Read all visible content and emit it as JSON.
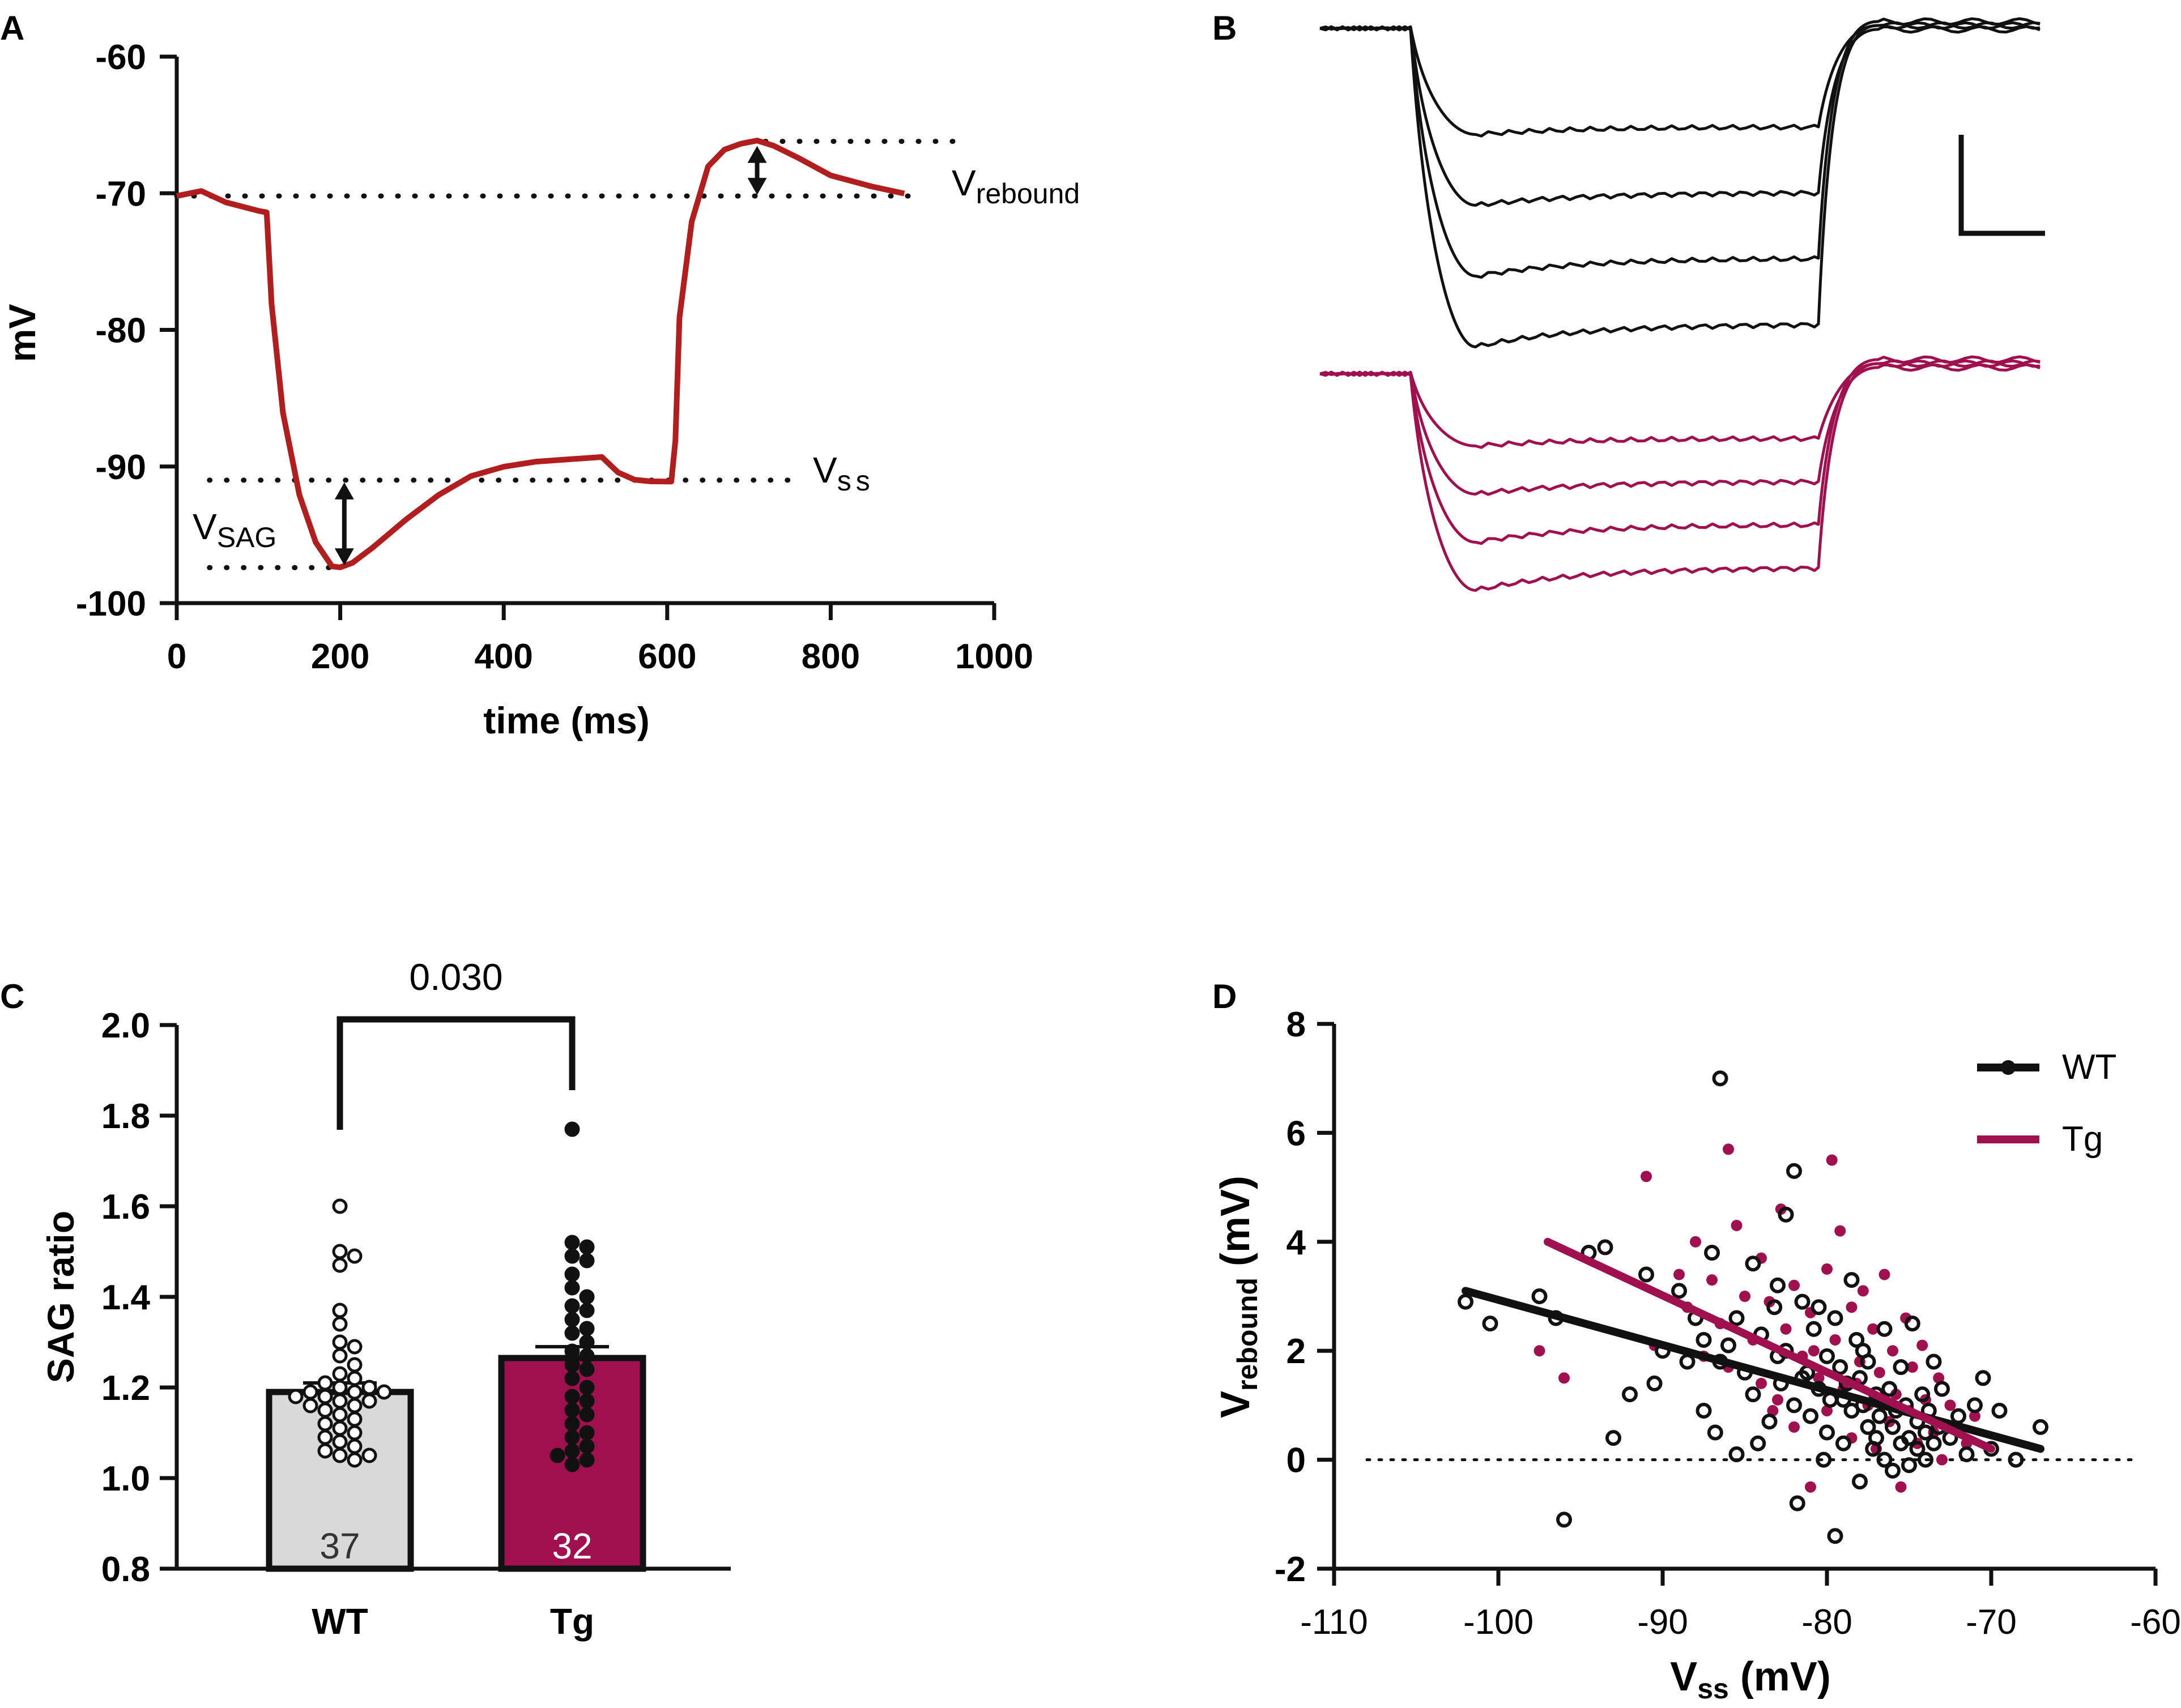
{
  "colors": {
    "wt": "#111111",
    "tg": "#a0104f",
    "trace_a": "#b21e1e",
    "wt_bar": "#d9d9d9"
  },
  "chart_data": [
    {
      "panel": "A",
      "type": "line",
      "xlabel": "time (ms)",
      "ylabel": "mV",
      "xlim": [
        0,
        1000
      ],
      "ylim": [
        -100,
        -60
      ],
      "xticks": [
        "0",
        "200",
        "400",
        "600",
        "800",
        "1000"
      ],
      "yticks": [
        "-60",
        "-70",
        "-80",
        "-90",
        "-100"
      ],
      "trace": {
        "x": [
          0,
          30,
          60,
          100,
          110,
          116,
          130,
          150,
          170,
          190,
          200,
          215,
          240,
          280,
          320,
          360,
          400,
          440,
          480,
          520,
          540,
          560,
          580,
          605,
          610,
          615,
          630,
          650,
          670,
          690,
          710,
          730,
          760,
          800,
          850,
          890
        ],
        "y": [
          -70.2,
          -69.8,
          -70.6,
          -71.2,
          -71.3,
          -78,
          -86,
          -92,
          -95.5,
          -97.3,
          -97.4,
          -97.1,
          -96,
          -94,
          -92.2,
          -90.8,
          -90.1,
          -89.7,
          -89.5,
          -89.3,
          -90.4,
          -90.9,
          -91,
          -91,
          -88,
          -79,
          -72,
          -68,
          -66.8,
          -66.4,
          -66.2,
          -66.6,
          -67.5,
          -68.8,
          -69.6,
          -70.1
        ]
      },
      "annotations": {
        "rebound": "rebound",
        "ss": "ss",
        "sag": "SAG",
        "v": "V"
      },
      "ref_lines": {
        "baseline": -70.2,
        "ss": -91,
        "sag_min": -97.4,
        "rebound_peak": -66.2
      }
    },
    {
      "panel": "B",
      "type": "line",
      "series": [
        {
          "name": "WT",
          "steady_state": [
            0.3,
            0.5,
            0.7,
            0.9
          ]
        },
        {
          "name": "Tg",
          "steady_state": [
            0.3,
            0.5,
            0.7,
            0.9
          ]
        }
      ]
    },
    {
      "panel": "C",
      "type": "bar",
      "categories": [
        "WT",
        "Tg"
      ],
      "values": [
        1.19,
        1.265
      ],
      "errors": [
        0.02,
        0.025
      ],
      "n_labels": [
        "37",
        "32"
      ],
      "ylabel": "SAG ratio",
      "ylim": [
        0.8,
        2.0
      ],
      "yticks": [
        "2.0",
        "1.8",
        "1.6",
        "1.4",
        "1.2",
        "1.0",
        "0.8"
      ],
      "p_value": "0.030",
      "points": {
        "WT": [
          1.6,
          1.5,
          1.49,
          1.47,
          1.37,
          1.34,
          1.3,
          1.29,
          1.27,
          1.25,
          1.23,
          1.22,
          1.21,
          1.2,
          1.2,
          1.19,
          1.19,
          1.19,
          1.18,
          1.18,
          1.17,
          1.17,
          1.16,
          1.16,
          1.15,
          1.14,
          1.13,
          1.12,
          1.11,
          1.1,
          1.09,
          1.08,
          1.07,
          1.06,
          1.05,
          1.05,
          1.04
        ],
        "Tg": [
          1.77,
          1.52,
          1.51,
          1.49,
          1.48,
          1.45,
          1.42,
          1.4,
          1.38,
          1.37,
          1.35,
          1.33,
          1.32,
          1.3,
          1.28,
          1.27,
          1.25,
          1.24,
          1.22,
          1.2,
          1.18,
          1.17,
          1.15,
          1.14,
          1.12,
          1.1,
          1.09,
          1.07,
          1.06,
          1.05,
          1.04,
          1.03
        ]
      }
    },
    {
      "panel": "D",
      "type": "scatter",
      "xlabel_main": "V",
      "xlabel_sub": "ss",
      "xlabel_unit": " (mV)",
      "ylabel_main": "V",
      "ylabel_sub": "rebound",
      "ylabel_unit": " (mV)",
      "xlim": [
        -110,
        -60
      ],
      "ylim": [
        -2,
        8
      ],
      "xticks": [
        "-110",
        "-100",
        "-90",
        "-80",
        "-70",
        "-60"
      ],
      "yticks": [
        "8",
        "6",
        "4",
        "2",
        "0",
        "-2"
      ],
      "legend": [
        "WT",
        "Tg"
      ],
      "fits": {
        "WT": {
          "x": [
            -102,
            -67
          ],
          "y": [
            3.1,
            0.2
          ]
        },
        "Tg": {
          "x": [
            -97,
            -70
          ],
          "y": [
            4.0,
            0.2
          ]
        }
      },
      "wt_points": [
        [
          -102,
          2.9
        ],
        [
          -100.5,
          2.5
        ],
        [
          -97.5,
          3.0
        ],
        [
          -96.5,
          2.6
        ],
        [
          -96,
          -1.1
        ],
        [
          -94.5,
          3.8
        ],
        [
          -93.5,
          3.9
        ],
        [
          -93,
          0.4
        ],
        [
          -92,
          1.2
        ],
        [
          -91,
          3.4
        ],
        [
          -90.5,
          1.4
        ],
        [
          -90,
          2.0
        ],
        [
          -89,
          3.1
        ],
        [
          -88.5,
          1.8
        ],
        [
          -88,
          2.6
        ],
        [
          -87.5,
          2.2
        ],
        [
          -87.5,
          0.9
        ],
        [
          -87,
          3.8
        ],
        [
          -86.8,
          0.5
        ],
        [
          -86.5,
          1.8
        ],
        [
          -86,
          2.1
        ],
        [
          -85.5,
          2.6
        ],
        [
          -85.5,
          0.1
        ],
        [
          -85,
          1.6
        ],
        [
          -84.5,
          3.6
        ],
        [
          -84.5,
          1.2
        ],
        [
          -84,
          2.3
        ],
        [
          -83.5,
          0.7
        ],
        [
          -83.2,
          2.8
        ],
        [
          -83,
          1.9
        ],
        [
          -82.5,
          4.5
        ],
        [
          -82.5,
          2.0
        ],
        [
          -82,
          5.3
        ],
        [
          -82,
          1.0
        ],
        [
          -81.8,
          -0.8
        ],
        [
          -81.5,
          2.9
        ],
        [
          -81.5,
          1.5
        ],
        [
          -81,
          0.8
        ],
        [
          -80.8,
          2.4
        ],
        [
          -80.5,
          1.3
        ],
        [
          -80.2,
          0.0
        ],
        [
          -80,
          1.9
        ],
        [
          -80,
          0.5
        ],
        [
          -79.8,
          1.1
        ],
        [
          -79.5,
          2.6
        ],
        [
          -79.2,
          1.7
        ],
        [
          -79,
          0.3
        ],
        [
          -78.8,
          1.4
        ],
        [
          -78.5,
          3.3
        ],
        [
          -78.5,
          0.9
        ],
        [
          -78.2,
          2.2
        ],
        [
          -78,
          1.5
        ],
        [
          -78,
          -0.4
        ],
        [
          -77.8,
          1.0
        ],
        [
          -77.5,
          0.6
        ],
        [
          -77.5,
          1.8
        ],
        [
          -77.2,
          0.2
        ],
        [
          -77,
          1.2
        ],
        [
          -77,
          0.4
        ],
        [
          -76.8,
          0.8
        ],
        [
          -76.5,
          2.4
        ],
        [
          -76.5,
          0.0
        ],
        [
          -76.2,
          1.3
        ],
        [
          -76,
          0.6
        ],
        [
          -76,
          -0.2
        ],
        [
          -75.8,
          0.9
        ],
        [
          -75.5,
          1.7
        ],
        [
          -75.5,
          0.3
        ],
        [
          -75.2,
          1.0
        ],
        [
          -75,
          0.4
        ],
        [
          -75,
          -0.1
        ],
        [
          -74.8,
          2.5
        ],
        [
          -74.5,
          0.7
        ],
        [
          -74.5,
          0.2
        ],
        [
          -74.2,
          1.2
        ],
        [
          -74,
          0.5
        ],
        [
          -74,
          0.0
        ],
        [
          -73.8,
          0.9
        ],
        [
          -73.5,
          1.8
        ],
        [
          -73.5,
          0.3
        ],
        [
          -73.2,
          0.6
        ],
        [
          -73,
          1.3
        ],
        [
          -72.5,
          0.4
        ],
        [
          -72,
          0.8
        ],
        [
          -71.5,
          0.1
        ],
        [
          -71,
          1.0
        ],
        [
          -70.5,
          1.5
        ],
        [
          -70,
          0.2
        ],
        [
          -69.5,
          0.9
        ],
        [
          -68.5,
          0.0
        ],
        [
          -67,
          0.6
        ],
        [
          -79.5,
          -1.4
        ],
        [
          -80.5,
          2.8
        ],
        [
          -83,
          3.2
        ],
        [
          -86.5,
          7.0
        ],
        [
          -81.2,
          1.6
        ],
        [
          -82.8,
          1.4
        ],
        [
          -84.2,
          0.3
        ],
        [
          -79,
          1.1
        ],
        [
          -77.8,
          2.0
        ]
      ],
      "tg_points": [
        [
          -97.5,
          2.0
        ],
        [
          -96,
          1.5
        ],
        [
          -91,
          5.2
        ],
        [
          -90.5,
          2.1
        ],
        [
          -89,
          3.4
        ],
        [
          -88.5,
          2.8
        ],
        [
          -88,
          4.0
        ],
        [
          -87.5,
          1.9
        ],
        [
          -87,
          3.3
        ],
        [
          -86.5,
          2.5
        ],
        [
          -86,
          5.7
        ],
        [
          -86,
          1.7
        ],
        [
          -85.5,
          4.3
        ],
        [
          -85,
          3.0
        ],
        [
          -84.5,
          2.2
        ],
        [
          -84,
          3.7
        ],
        [
          -84,
          1.4
        ],
        [
          -83.5,
          2.9
        ],
        [
          -83,
          1.1
        ],
        [
          -82.8,
          4.6
        ],
        [
          -82.5,
          2.4
        ],
        [
          -82,
          3.2
        ],
        [
          -82,
          0.6
        ],
        [
          -81.5,
          1.9
        ],
        [
          -81,
          2.7
        ],
        [
          -81,
          -0.5
        ],
        [
          -80.5,
          1.5
        ],
        [
          -80,
          3.5
        ],
        [
          -80,
          0.9
        ],
        [
          -79.7,
          5.5
        ],
        [
          -79.5,
          2.2
        ],
        [
          -79.2,
          4.2
        ],
        [
          -79,
          1.3
        ],
        [
          -78.5,
          2.8
        ],
        [
          -78.5,
          0.4
        ],
        [
          -78,
          1.8
        ],
        [
          -77.8,
          3.1
        ],
        [
          -77.5,
          1.0
        ],
        [
          -77.2,
          2.4
        ],
        [
          -77,
          0.2
        ],
        [
          -76.8,
          1.6
        ],
        [
          -76.5,
          3.4
        ],
        [
          -76.2,
          0.7
        ],
        [
          -76,
          2.0
        ],
        [
          -75.8,
          1.2
        ],
        [
          -75.5,
          -0.5
        ],
        [
          -75.2,
          2.6
        ],
        [
          -75,
          0.9
        ],
        [
          -74.8,
          1.7
        ],
        [
          -74.5,
          0.3
        ],
        [
          -74.2,
          2.1
        ],
        [
          -74,
          1.1
        ],
        [
          -73.5,
          0.5
        ],
        [
          -73.2,
          1.5
        ],
        [
          -73,
          0.0
        ],
        [
          -72.5,
          1.0
        ],
        [
          -72,
          0.6
        ],
        [
          -71.5,
          0.3
        ],
        [
          -71,
          0.8
        ],
        [
          -83.3,
          0.9
        ],
        [
          -80.8,
          2.0
        ],
        [
          -78.2,
          1.4
        ]
      ]
    }
  ],
  "panels": {
    "a": "A",
    "b": "B",
    "c": "C",
    "d": "D"
  }
}
